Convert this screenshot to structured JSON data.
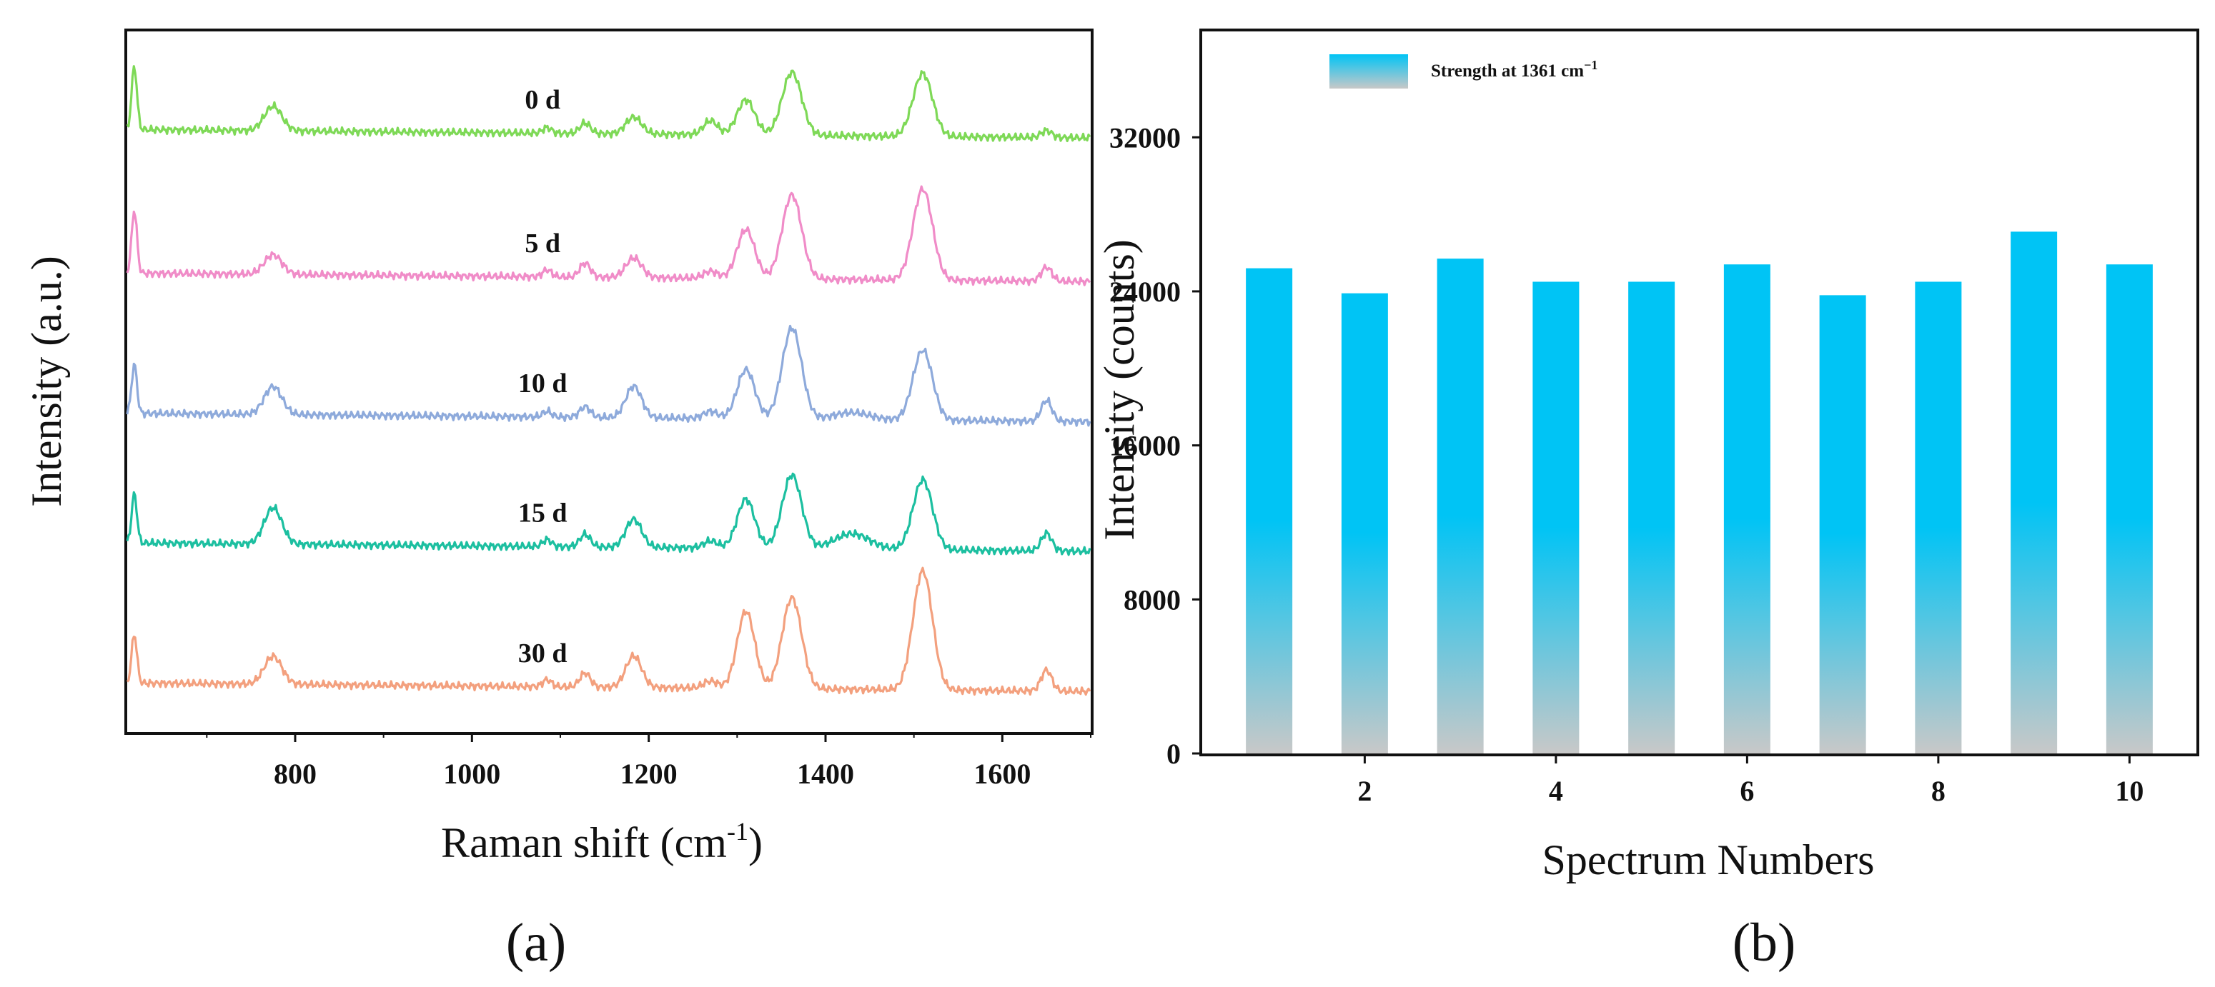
{
  "chart_data": [
    {
      "panel": "(a)",
      "type": "line",
      "xlabel": "Raman shift (cm",
      "xlabel_sup": "-1",
      "xlabel_close": ")",
      "ylabel": "Intensity (a.u.)",
      "xlim": [
        610,
        1700
      ],
      "xticks": [
        800,
        1000,
        1200,
        1400,
        1600
      ],
      "peaks": [
        {
          "pos": 618,
          "width": 3
        },
        {
          "pos": 775,
          "width": 10
        },
        {
          "pos": 1085,
          "width": 5
        },
        {
          "pos": 1128,
          "width": 6
        },
        {
          "pos": 1183,
          "width": 9
        },
        {
          "pos": 1270,
          "width": 8
        },
        {
          "pos": 1310,
          "width": 10
        },
        {
          "pos": 1362,
          "width": 11
        },
        {
          "pos": 1430,
          "width": 20
        },
        {
          "pos": 1510,
          "width": 11
        },
        {
          "pos": 1650,
          "width": 6
        }
      ],
      "series": [
        {
          "name": "0 d",
          "label": "0 d",
          "color": "#7ed957",
          "offset": 0.86,
          "amplitudes": [
            0.09,
            0.035,
            0.008,
            0.015,
            0.024,
            0.02,
            0.05,
            0.09,
            0.0,
            0.09,
            0.01
          ]
        },
        {
          "name": "5 d",
          "label": "5 d",
          "color": "#f08cc8",
          "offset": 0.655,
          "amplitudes": [
            0.09,
            0.028,
            0.01,
            0.02,
            0.028,
            0.01,
            0.07,
            0.12,
            0.0,
            0.13,
            0.02
          ]
        },
        {
          "name": "10 d",
          "label": "10 d",
          "color": "#8eaadb",
          "offset": 0.455,
          "amplitudes": [
            0.07,
            0.04,
            0.008,
            0.015,
            0.045,
            0.01,
            0.07,
            0.13,
            0.01,
            0.1,
            0.03
          ]
        },
        {
          "name": "15 d",
          "label": "15 d",
          "color": "#1cbfa0",
          "offset": 0.27,
          "amplitudes": [
            0.07,
            0.052,
            0.01,
            0.018,
            0.04,
            0.01,
            0.07,
            0.105,
            0.022,
            0.1,
            0.025
          ]
        },
        {
          "name": "30 d",
          "label": "30 d",
          "color": "#f3a07e",
          "offset": 0.07,
          "amplitudes": [
            0.07,
            0.04,
            0.01,
            0.02,
            0.045,
            0.01,
            0.11,
            0.13,
            0.0,
            0.17,
            0.03
          ]
        }
      ]
    },
    {
      "panel": "(b)",
      "type": "bar",
      "xlabel": "Spectrum Numbers",
      "ylabel": "Intensity (counts)",
      "legend": "Strength at 1361 cm",
      "legend_sup": "−1",
      "categories": [
        1,
        2,
        3,
        4,
        5,
        6,
        7,
        8,
        9,
        10
      ],
      "values": [
        25200,
        23900,
        25700,
        24500,
        24500,
        25400,
        23800,
        24500,
        27100,
        25400
      ],
      "xticks": [
        2,
        4,
        6,
        8,
        10
      ],
      "yticks": [
        0,
        8000,
        16000,
        24000,
        32000
      ],
      "ylim": [
        0,
        37500
      ],
      "color_top": "#00c4f5",
      "color_bottom": "#c8c8c8"
    }
  ]
}
